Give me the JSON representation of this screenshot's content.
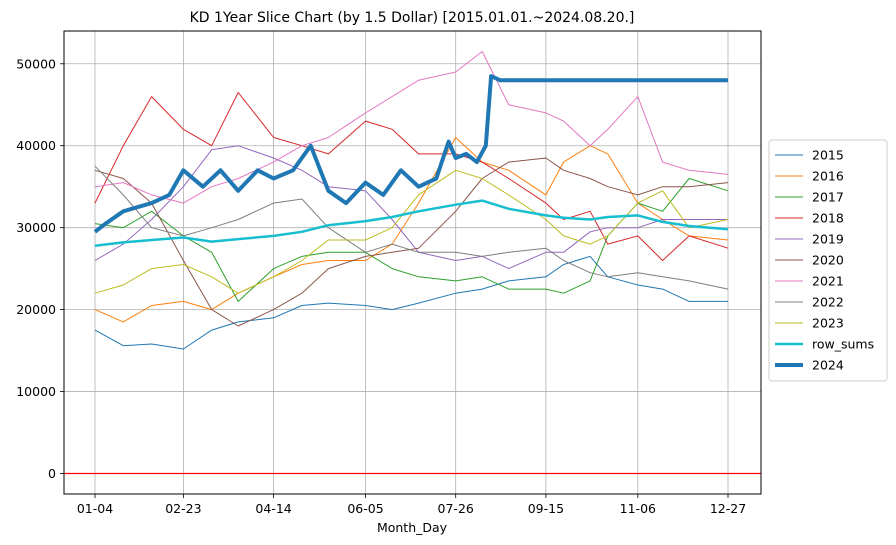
{
  "chart_data": {
    "type": "line",
    "title": "KD 1Year Slice Chart (by 1.5 Dollar) [2015.01.01.~2024.08.20.]",
    "xlabel": "Month_Day",
    "ylabel": "",
    "x_ticks": [
      "01-04",
      "02-23",
      "04-14",
      "06-05",
      "07-26",
      "09-15",
      "11-06",
      "12-27"
    ],
    "y_ticks": [
      0,
      10000,
      20000,
      30000,
      40000,
      50000
    ],
    "ylim": [
      -2500,
      54000
    ],
    "grid": true,
    "legend_position": "right",
    "reference_line": {
      "y": 0,
      "color": "#ff0000"
    },
    "series": [
      {
        "name": "2015",
        "color": "#1f77b4",
        "width": 1,
        "points": [
          [
            "01-04",
            17500
          ],
          [
            "01-20",
            15600
          ],
          [
            "02-05",
            15800
          ],
          [
            "02-23",
            15200
          ],
          [
            "03-10",
            17500
          ],
          [
            "03-25",
            18500
          ],
          [
            "04-14",
            19000
          ],
          [
            "04-30",
            20500
          ],
          [
            "05-15",
            20800
          ],
          [
            "06-05",
            20500
          ],
          [
            "06-20",
            20000
          ],
          [
            "07-05",
            20800
          ],
          [
            "07-26",
            22000
          ],
          [
            "08-10",
            22500
          ],
          [
            "08-25",
            23500
          ],
          [
            "09-15",
            24000
          ],
          [
            "09-25",
            25500
          ],
          [
            "10-10",
            26500
          ],
          [
            "10-20",
            24000
          ],
          [
            "11-06",
            23000
          ],
          [
            "11-20",
            22500
          ],
          [
            "12-05",
            21000
          ],
          [
            "12-27",
            21000
          ]
        ]
      },
      {
        "name": "2016",
        "color": "#ff7f0e",
        "width": 1,
        "points": [
          [
            "01-04",
            20000
          ],
          [
            "01-20",
            18500
          ],
          [
            "02-05",
            20500
          ],
          [
            "02-23",
            21000
          ],
          [
            "03-10",
            20000
          ],
          [
            "03-25",
            22000
          ],
          [
            "04-14",
            24000
          ],
          [
            "04-30",
            25500
          ],
          [
            "05-15",
            26000
          ],
          [
            "06-05",
            26000
          ],
          [
            "06-20",
            28000
          ],
          [
            "07-05",
            33000
          ],
          [
            "07-26",
            41000
          ],
          [
            "08-10",
            38000
          ],
          [
            "08-25",
            37000
          ],
          [
            "09-15",
            34000
          ],
          [
            "09-25",
            38000
          ],
          [
            "10-10",
            40000
          ],
          [
            "10-20",
            39000
          ],
          [
            "11-06",
            33000
          ],
          [
            "11-20",
            31000
          ],
          [
            "12-05",
            29000
          ],
          [
            "12-27",
            28500
          ]
        ]
      },
      {
        "name": "2017",
        "color": "#2ca02c",
        "width": 1,
        "points": [
          [
            "01-04",
            30500
          ],
          [
            "01-20",
            30000
          ],
          [
            "02-05",
            32000
          ],
          [
            "02-23",
            29000
          ],
          [
            "03-10",
            27000
          ],
          [
            "03-25",
            21000
          ],
          [
            "04-14",
            25000
          ],
          [
            "04-30",
            26500
          ],
          [
            "05-15",
            27000
          ],
          [
            "06-05",
            27000
          ],
          [
            "06-20",
            25000
          ],
          [
            "07-05",
            24000
          ],
          [
            "07-26",
            23500
          ],
          [
            "08-10",
            24000
          ],
          [
            "08-25",
            22500
          ],
          [
            "09-15",
            22500
          ],
          [
            "09-25",
            22000
          ],
          [
            "10-10",
            23500
          ],
          [
            "10-20",
            29000
          ],
          [
            "11-06",
            33000
          ],
          [
            "11-20",
            32000
          ],
          [
            "12-05",
            36000
          ],
          [
            "12-27",
            34500
          ]
        ]
      },
      {
        "name": "2018",
        "color": "#d62728",
        "width": 1,
        "points": [
          [
            "01-04",
            33000
          ],
          [
            "01-20",
            40000
          ],
          [
            "02-05",
            46000
          ],
          [
            "02-23",
            42000
          ],
          [
            "03-10",
            40000
          ],
          [
            "03-25",
            46500
          ],
          [
            "04-14",
            41000
          ],
          [
            "04-30",
            40000
          ],
          [
            "05-15",
            39000
          ],
          [
            "06-05",
            43000
          ],
          [
            "06-20",
            42000
          ],
          [
            "07-05",
            39000
          ],
          [
            "07-26",
            39000
          ],
          [
            "08-10",
            38000
          ],
          [
            "08-25",
            36000
          ],
          [
            "09-15",
            33000
          ],
          [
            "09-25",
            31000
          ],
          [
            "10-10",
            32000
          ],
          [
            "10-20",
            28000
          ],
          [
            "11-06",
            29000
          ],
          [
            "11-20",
            26000
          ],
          [
            "12-05",
            29000
          ],
          [
            "12-27",
            27500
          ]
        ]
      },
      {
        "name": "2019",
        "color": "#9467bd",
        "width": 1,
        "points": [
          [
            "01-04",
            26000
          ],
          [
            "01-20",
            28000
          ],
          [
            "02-05",
            31000
          ],
          [
            "02-23",
            35000
          ],
          [
            "03-10",
            39500
          ],
          [
            "03-25",
            40000
          ],
          [
            "04-14",
            38500
          ],
          [
            "04-30",
            37000
          ],
          [
            "05-15",
            35000
          ],
          [
            "06-05",
            34500
          ],
          [
            "06-20",
            31000
          ],
          [
            "07-05",
            27000
          ],
          [
            "07-26",
            26000
          ],
          [
            "08-10",
            26500
          ],
          [
            "08-25",
            25000
          ],
          [
            "09-15",
            27000
          ],
          [
            "09-25",
            27000
          ],
          [
            "10-10",
            29500
          ],
          [
            "10-20",
            30000
          ],
          [
            "11-06",
            30000
          ],
          [
            "11-20",
            31000
          ],
          [
            "12-05",
            31000
          ],
          [
            "12-27",
            31000
          ]
        ]
      },
      {
        "name": "2020",
        "color": "#8c564b",
        "width": 1,
        "points": [
          [
            "01-04",
            37000
          ],
          [
            "01-20",
            36000
          ],
          [
            "02-05",
            33000
          ],
          [
            "02-23",
            26000
          ],
          [
            "03-10",
            20000
          ],
          [
            "03-25",
            18000
          ],
          [
            "04-14",
            20000
          ],
          [
            "04-30",
            22000
          ],
          [
            "05-15",
            25000
          ],
          [
            "06-05",
            26500
          ],
          [
            "06-20",
            27000
          ],
          [
            "07-05",
            27500
          ],
          [
            "07-26",
            32000
          ],
          [
            "08-10",
            36000
          ],
          [
            "08-25",
            38000
          ],
          [
            "09-15",
            38500
          ],
          [
            "09-25",
            37000
          ],
          [
            "10-10",
            36000
          ],
          [
            "10-20",
            35000
          ],
          [
            "11-06",
            34000
          ],
          [
            "11-20",
            35000
          ],
          [
            "12-05",
            35000
          ],
          [
            "12-27",
            35500
          ]
        ]
      },
      {
        "name": "2021",
        "color": "#e377c2",
        "width": 1,
        "points": [
          [
            "01-04",
            35000
          ],
          [
            "01-20",
            35500
          ],
          [
            "02-05",
            34000
          ],
          [
            "02-23",
            33000
          ],
          [
            "03-10",
            35000
          ],
          [
            "03-25",
            36000
          ],
          [
            "04-14",
            38000
          ],
          [
            "04-30",
            40000
          ],
          [
            "05-15",
            41000
          ],
          [
            "06-05",
            44000
          ],
          [
            "06-20",
            46000
          ],
          [
            "07-05",
            48000
          ],
          [
            "07-26",
            49000
          ],
          [
            "08-10",
            51500
          ],
          [
            "08-25",
            45000
          ],
          [
            "09-15",
            44000
          ],
          [
            "09-25",
            43000
          ],
          [
            "10-10",
            40000
          ],
          [
            "10-20",
            42000
          ],
          [
            "11-06",
            46000
          ],
          [
            "11-20",
            38000
          ],
          [
            "12-05",
            37000
          ],
          [
            "12-27",
            36500
          ]
        ]
      },
      {
        "name": "2022",
        "color": "#7f7f7f",
        "width": 1,
        "points": [
          [
            "01-04",
            37500
          ],
          [
            "01-20",
            34000
          ],
          [
            "02-05",
            30000
          ],
          [
            "02-23",
            29000
          ],
          [
            "03-10",
            30000
          ],
          [
            "03-25",
            31000
          ],
          [
            "04-14",
            33000
          ],
          [
            "04-30",
            33500
          ],
          [
            "05-15",
            30000
          ],
          [
            "06-05",
            27000
          ],
          [
            "06-20",
            28000
          ],
          [
            "07-05",
            27000
          ],
          [
            "07-26",
            27000
          ],
          [
            "08-10",
            26500
          ],
          [
            "08-25",
            27000
          ],
          [
            "09-15",
            27500
          ],
          [
            "09-25",
            26000
          ],
          [
            "10-10",
            24500
          ],
          [
            "10-20",
            24000
          ],
          [
            "11-06",
            24500
          ],
          [
            "11-20",
            24000
          ],
          [
            "12-05",
            23500
          ],
          [
            "12-27",
            22500
          ]
        ]
      },
      {
        "name": "2023",
        "color": "#bcbd22",
        "width": 1,
        "points": [
          [
            "01-04",
            22000
          ],
          [
            "01-20",
            23000
          ],
          [
            "02-05",
            25000
          ],
          [
            "02-23",
            25500
          ],
          [
            "03-10",
            24000
          ],
          [
            "03-25",
            22000
          ],
          [
            "04-14",
            24000
          ],
          [
            "04-30",
            26000
          ],
          [
            "05-15",
            28500
          ],
          [
            "06-05",
            28500
          ],
          [
            "06-20",
            30000
          ],
          [
            "07-05",
            34000
          ],
          [
            "07-26",
            37000
          ],
          [
            "08-10",
            36000
          ],
          [
            "08-25",
            34000
          ],
          [
            "09-15",
            31000
          ],
          [
            "09-25",
            29000
          ],
          [
            "10-10",
            28000
          ],
          [
            "10-20",
            29000
          ],
          [
            "11-06",
            33000
          ],
          [
            "11-20",
            34500
          ],
          [
            "12-05",
            30000
          ],
          [
            "12-27",
            31000
          ]
        ]
      },
      {
        "name": "row_sums",
        "color": "#17becf",
        "width": 2.5,
        "points": [
          [
            "01-04",
            27800
          ],
          [
            "01-20",
            28200
          ],
          [
            "02-05",
            28500
          ],
          [
            "02-23",
            28800
          ],
          [
            "03-10",
            28300
          ],
          [
            "03-25",
            28600
          ],
          [
            "04-14",
            29000
          ],
          [
            "04-30",
            29500
          ],
          [
            "05-15",
            30300
          ],
          [
            "06-05",
            30800
          ],
          [
            "06-20",
            31300
          ],
          [
            "07-05",
            32000
          ],
          [
            "07-26",
            32800
          ],
          [
            "08-10",
            33300
          ],
          [
            "08-25",
            32300
          ],
          [
            "09-15",
            31500
          ],
          [
            "09-25",
            31200
          ],
          [
            "10-10",
            31000
          ],
          [
            "10-20",
            31300
          ],
          [
            "11-06",
            31500
          ],
          [
            "11-20",
            30700
          ],
          [
            "12-05",
            30200
          ],
          [
            "12-27",
            29800
          ]
        ]
      },
      {
        "name": "2024",
        "color": "#1f77b4",
        "width": 4,
        "points": [
          [
            "01-04",
            29500
          ],
          [
            "01-10",
            30500
          ],
          [
            "01-20",
            32000
          ],
          [
            "02-05",
            33000
          ],
          [
            "02-15",
            34000
          ],
          [
            "02-23",
            37000
          ],
          [
            "03-05",
            35000
          ],
          [
            "03-15",
            37000
          ],
          [
            "03-25",
            34500
          ],
          [
            "04-05",
            37000
          ],
          [
            "04-14",
            36000
          ],
          [
            "04-25",
            37000
          ],
          [
            "05-05",
            40000
          ],
          [
            "05-15",
            34500
          ],
          [
            "05-25",
            33000
          ],
          [
            "06-05",
            35500
          ],
          [
            "06-15",
            34000
          ],
          [
            "06-25",
            37000
          ],
          [
            "07-05",
            35000
          ],
          [
            "07-15",
            36000
          ],
          [
            "07-22",
            40500
          ],
          [
            "07-26",
            38500
          ],
          [
            "08-01",
            39000
          ],
          [
            "08-07",
            38000
          ],
          [
            "08-12",
            40000
          ],
          [
            "08-15",
            48500
          ],
          [
            "08-20",
            48000
          ],
          [
            "12-27",
            48000
          ]
        ]
      }
    ]
  }
}
